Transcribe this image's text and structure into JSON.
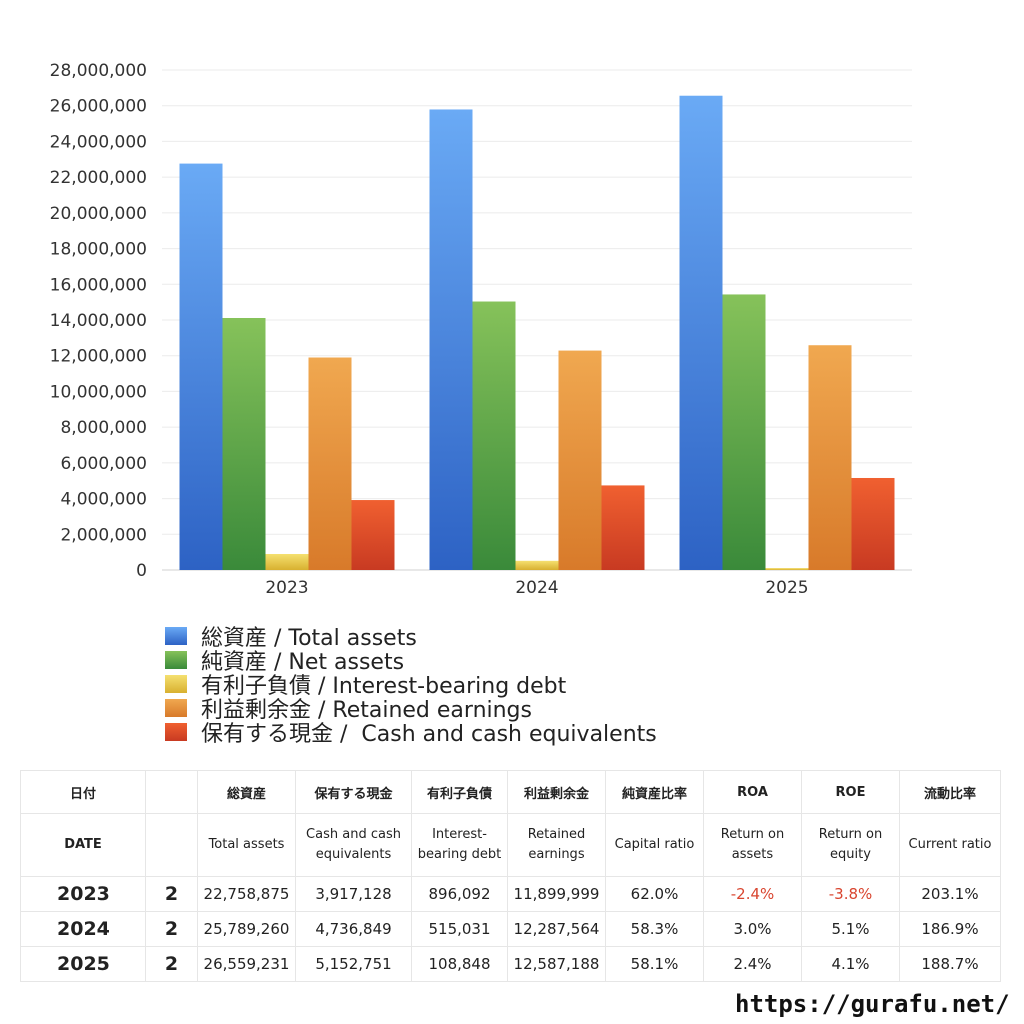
{
  "chart_data": {
    "type": "bar",
    "categories": [
      "2023",
      "2024",
      "2025"
    ],
    "ylim": [
      0,
      28000000
    ],
    "yticks": [
      0,
      2000000,
      4000000,
      6000000,
      8000000,
      10000000,
      12000000,
      14000000,
      16000000,
      18000000,
      20000000,
      22000000,
      24000000,
      26000000,
      28000000
    ],
    "ytick_labels": [
      "0",
      "2,000,000",
      "4,000,000",
      "6,000,000",
      "8,000,000",
      "10,000,000",
      "12,000,000",
      "14,000,000",
      "16,000,000",
      "18,000,000",
      "20,000,000",
      "22,000,000",
      "24,000,000",
      "26,000,000",
      "28,000,000"
    ],
    "grid": true,
    "legend_position": "bottom",
    "series": [
      {
        "name": "総資産 / Total assets",
        "color": "#3a7fe0",
        "color_top": "#6aaaf5",
        "color_bottom": "#2d62c4",
        "values": [
          22758875,
          25789260,
          26559231
        ]
      },
      {
        "name": "純資産 / Net assets",
        "color": "#5aaa4a",
        "color_top": "#86c25a",
        "color_bottom": "#3a8a3a",
        "values": [
          14112000,
          15035000,
          15431000
        ]
      },
      {
        "name": "有利子負債 / Interest-bearing debt",
        "color": "#f0d050",
        "color_top": "#f5e070",
        "color_bottom": "#d8b030",
        "values": [
          896092,
          515031,
          108848
        ]
      },
      {
        "name": "利益剰余金 / Retained earnings",
        "color": "#e8923a",
        "color_top": "#f0a850",
        "color_bottom": "#d87a2a",
        "values": [
          11899999,
          12287564,
          12587188
        ]
      },
      {
        "name": "保有する現金 /  Cash and cash equivalents",
        "color": "#e5502e",
        "color_top": "#f06030",
        "color_bottom": "#c83a22",
        "values": [
          3917128,
          4736849,
          5152751
        ]
      }
    ]
  },
  "table": {
    "headers_jp": [
      "日付",
      "",
      "総資産",
      "保有する現金",
      "有利子負債",
      "利益剰余金",
      "純資産比率",
      "ROA",
      "ROE",
      "流動比率"
    ],
    "headers_en": [
      "DATE",
      "",
      "Total assets",
      "Cash and cash equivalents",
      "Interest-bearing debt",
      "Retained earnings",
      "Capital ratio",
      "Return on assets",
      "Return on equity",
      "Current ratio"
    ],
    "rows": [
      {
        "year": "2023",
        "q": "2",
        "total_assets": "22,758,875",
        "cash": "3,917,128",
        "debt": "896,092",
        "retained": "11,899,999",
        "capital_ratio": "62.0%",
        "roa": "-2.4%",
        "roe": "-3.8%",
        "current_ratio": "203.1%",
        "roa_neg": true,
        "roe_neg": true
      },
      {
        "year": "2024",
        "q": "2",
        "total_assets": "25,789,260",
        "cash": "4,736,849",
        "debt": "515,031",
        "retained": "12,287,564",
        "capital_ratio": "58.3%",
        "roa": "3.0%",
        "roe": "5.1%",
        "current_ratio": "186.9%",
        "roa_neg": false,
        "roe_neg": false
      },
      {
        "year": "2025",
        "q": "2",
        "total_assets": "26,559,231",
        "cash": "5,152,751",
        "debt": "108,848",
        "retained": "12,587,188",
        "capital_ratio": "58.1%",
        "roa": "2.4%",
        "roe": "4.1%",
        "current_ratio": "188.7%",
        "roa_neg": false,
        "roe_neg": false
      }
    ]
  },
  "footer": {
    "url": "https://gurafu.net/"
  }
}
